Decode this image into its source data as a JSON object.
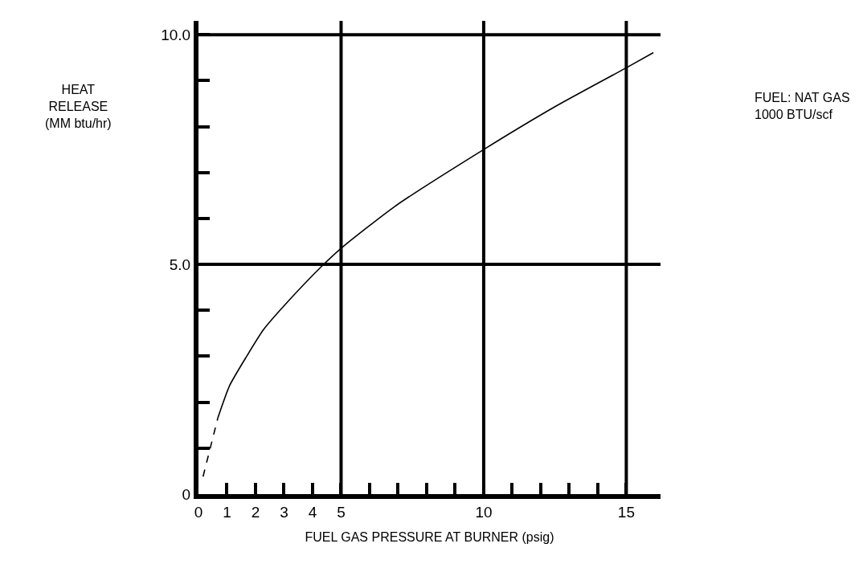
{
  "chart_data": {
    "type": "line",
    "xlabel": "FUEL GAS PRESSURE AT BURNER (psig)",
    "ylabel": "HEAT\nRELEASE\n(MM btu/hr)",
    "annotations": [
      "FUEL: NAT GAS\n1000 BTU/scf"
    ],
    "xlim": [
      0,
      16.2
    ],
    "ylim": [
      0,
      10.3
    ],
    "xticks": [
      0,
      1,
      2,
      3,
      4,
      5,
      {
        "value": 6,
        "label": null
      },
      {
        "value": 7,
        "label": null
      },
      {
        "value": 8,
        "label": null
      },
      {
        "value": 9,
        "label": null
      },
      10,
      {
        "value": 11,
        "label": null
      },
      {
        "value": 12,
        "label": null
      },
      {
        "value": 13,
        "label": null
      },
      {
        "value": 14,
        "label": null
      },
      15
    ],
    "yticks": [
      0,
      {
        "value": 1,
        "label": null
      },
      {
        "value": 2,
        "label": null
      },
      {
        "value": 3,
        "label": null
      },
      {
        "value": 4,
        "label": null
      },
      {
        "value": 5,
        "label": "5.0"
      },
      {
        "value": 6,
        "label": null
      },
      {
        "value": 7,
        "label": null
      },
      {
        "value": 8,
        "label": null
      },
      {
        "value": 9,
        "label": null
      },
      {
        "value": 10,
        "label": "10.0"
      }
    ],
    "grid": false,
    "marker": "none",
    "ref_lines": [
      {
        "axis": "x",
        "value": 5,
        "color": "#000000"
      },
      {
        "axis": "x",
        "value": 10,
        "color": "#000000"
      },
      {
        "axis": "x",
        "value": 15,
        "color": "#000000"
      },
      {
        "axis": "y",
        "value": 5,
        "color": "#000000"
      },
      {
        "axis": "y",
        "value": 10,
        "color": "#000000"
      }
    ],
    "series": [
      {
        "color": "#000000",
        "line_style": "dashed",
        "x": [
          0.16,
          0.68
        ],
        "values": [
          0.38,
          1.66
        ]
      },
      {
        "color": "#000000",
        "line_style": "solid",
        "x": [
          0.68,
          1.09,
          1.69,
          2.28,
          3.06,
          4.29,
          5.0,
          6.88,
          10.0,
          12.55,
          15.0,
          15.95
        ],
        "values": [
          1.66,
          2.36,
          3.0,
          3.58,
          4.14,
          4.94,
          5.35,
          6.26,
          7.5,
          8.45,
          9.28,
          9.61
        ]
      }
    ]
  }
}
